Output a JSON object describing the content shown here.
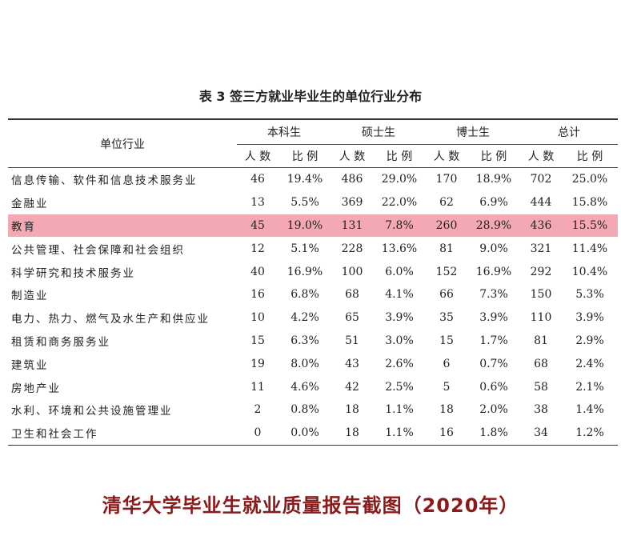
{
  "table": {
    "title": "表 3 签三方就业毕业生的单位行业分布",
    "industry_header": "单位行业",
    "groups": [
      "本科生",
      "硕士生",
      "博士生",
      "总计"
    ],
    "sub_headers": [
      "人 数",
      "比 例",
      "人 数",
      "比 例",
      "人 数",
      "比 例",
      "人 数",
      "比 例"
    ],
    "rows": [
      {
        "industry": "信息传输、软件和信息技术服务业",
        "cells": [
          "46",
          "19.4%",
          "486",
          "29.0%",
          "170",
          "18.9%",
          "702",
          "25.0%"
        ]
      },
      {
        "industry": "金融业",
        "cells": [
          "13",
          "5.5%",
          "369",
          "22.0%",
          "62",
          "6.9%",
          "444",
          "15.8%"
        ]
      },
      {
        "industry": "教育",
        "cells": [
          "45",
          "19.0%",
          "131",
          "7.8%",
          "260",
          "28.9%",
          "436",
          "15.5%"
        ]
      },
      {
        "industry": "公共管理、社会保障和社会组织",
        "cells": [
          "12",
          "5.1%",
          "228",
          "13.6%",
          "81",
          "9.0%",
          "321",
          "11.4%"
        ]
      },
      {
        "industry": "科学研究和技术服务业",
        "cells": [
          "40",
          "16.9%",
          "100",
          "6.0%",
          "152",
          "16.9%",
          "292",
          "10.4%"
        ]
      },
      {
        "industry": "制造业",
        "cells": [
          "16",
          "6.8%",
          "68",
          "4.1%",
          "66",
          "7.3%",
          "150",
          "5.3%"
        ]
      },
      {
        "industry": "电力、热力、燃气及水生产和供应业",
        "cells": [
          "10",
          "4.2%",
          "65",
          "3.9%",
          "35",
          "3.9%",
          "110",
          "3.9%"
        ]
      },
      {
        "industry": "租赁和商务服务业",
        "cells": [
          "15",
          "6.3%",
          "51",
          "3.0%",
          "15",
          "1.7%",
          "81",
          "2.9%"
        ]
      },
      {
        "industry": "建筑业",
        "cells": [
          "19",
          "8.0%",
          "43",
          "2.6%",
          "6",
          "0.7%",
          "68",
          "2.4%"
        ]
      },
      {
        "industry": "房地产业",
        "cells": [
          "11",
          "4.6%",
          "42",
          "2.5%",
          "5",
          "0.6%",
          "58",
          "2.1%"
        ]
      },
      {
        "industry": "水利、环境和公共设施管理业",
        "cells": [
          "2",
          "0.8%",
          "18",
          "1.1%",
          "18",
          "2.0%",
          "38",
          "1.4%"
        ]
      },
      {
        "industry": "卫生和社会工作",
        "cells": [
          "0",
          "0.0%",
          "18",
          "1.1%",
          "16",
          "1.8%",
          "34",
          "1.2%"
        ]
      }
    ],
    "highlight_color": "#f4a8b4"
  },
  "caption": "清华大学毕业生就业质量报告截图（2020年）",
  "caption_color": "#8b1a1a"
}
